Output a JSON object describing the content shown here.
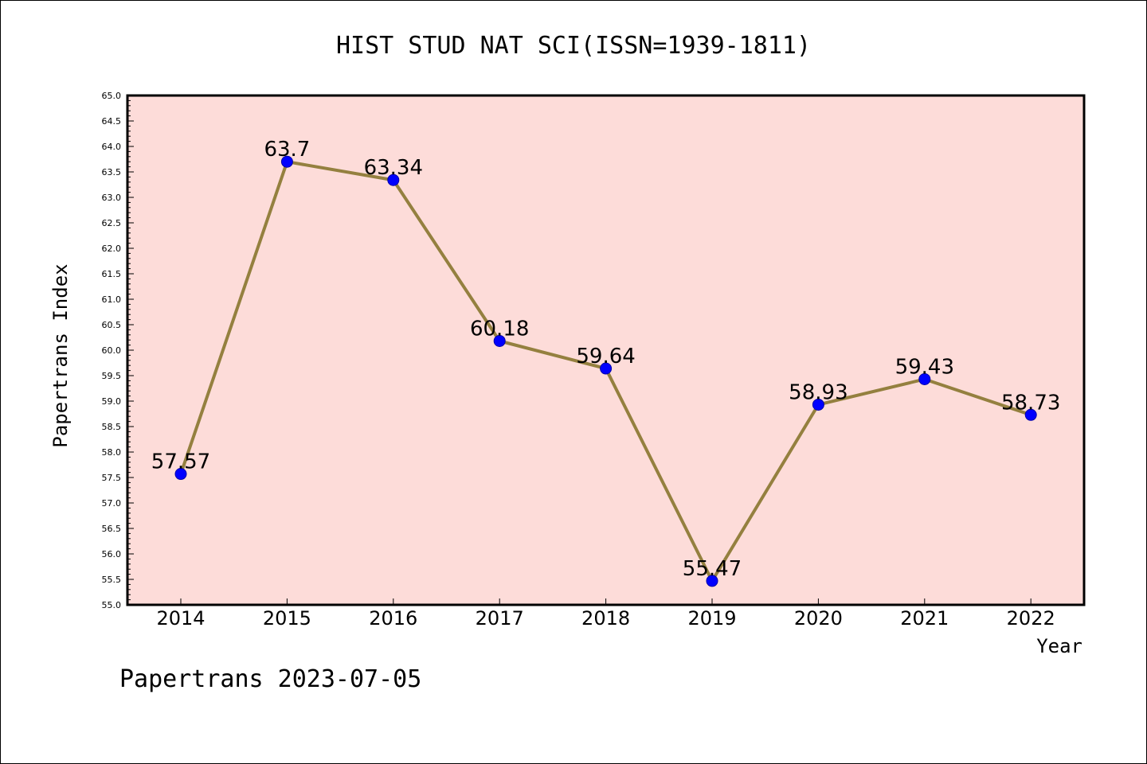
{
  "footer": "Papertrans 2023-07-05",
  "colors": {
    "plot_background": "#fddcd9",
    "line": "#94803f",
    "marker": "#0000ff",
    "marker_edge": "#0000aa"
  },
  "chart_data": {
    "type": "line",
    "title": "HIST STUD NAT SCI(ISSN=1939-1811)",
    "xlabel": "Year",
    "ylabel": "Papertrans Index",
    "categories": [
      "2014",
      "2015",
      "2016",
      "2017",
      "2018",
      "2019",
      "2020",
      "2021",
      "2022"
    ],
    "values": [
      57.57,
      63.7,
      63.34,
      60.18,
      59.64,
      55.47,
      58.93,
      59.43,
      58.73
    ],
    "data_labels": [
      "57.57",
      "63.7",
      "63.34",
      "60.18",
      "59.64",
      "55.47",
      "58.93",
      "59.43",
      "58.73"
    ],
    "ylim": [
      55.0,
      65.0
    ],
    "yticks": [
      "55.0",
      "55.5",
      "56.0",
      "56.5",
      "57.0",
      "57.5",
      "58.0",
      "58.5",
      "59.0",
      "59.5",
      "60.0",
      "60.5",
      "61.0",
      "61.5",
      "62.0",
      "62.5",
      "63.0",
      "63.5",
      "64.0",
      "64.5",
      "65.0"
    ],
    "grid": false,
    "legend": "none"
  }
}
